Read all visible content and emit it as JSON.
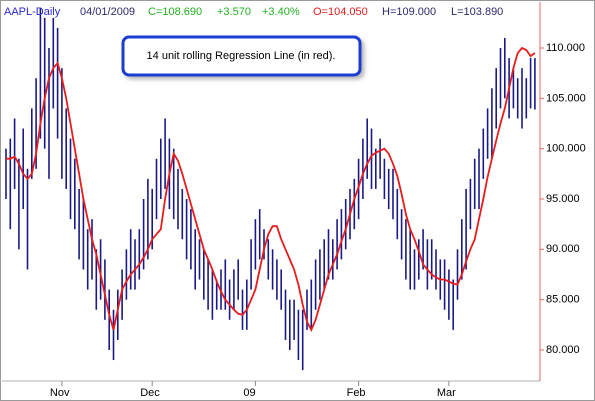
{
  "chart_data": {
    "type": "ohlc",
    "header": {
      "symbol": "AAPL-Daily",
      "date": "04/01/2009",
      "close": "C=108.690",
      "change": "+3.570",
      "change_pct": "+3.40%",
      "open": "O=104.050",
      "high": "H=109.000",
      "low": "L=103.890"
    },
    "annotation": "14 unit rolling Regression Line (in red).",
    "categories": [
      null,
      null,
      null,
      null,
      null,
      null,
      null,
      null,
      null,
      null,
      null,
      null,
      null,
      "Nov",
      null,
      null,
      null,
      null,
      null,
      null,
      null,
      null,
      null,
      null,
      null,
      null,
      null,
      null,
      null,
      null,
      null,
      null,
      null,
      null,
      "Dec",
      null,
      null,
      null,
      null,
      null,
      null,
      null,
      null,
      null,
      null,
      null,
      null,
      null,
      null,
      null,
      null,
      null,
      null,
      null,
      null,
      null,
      null,
      null,
      "09",
      null,
      null,
      null,
      null,
      null,
      null,
      null,
      null,
      null,
      null,
      null,
      null,
      null,
      null,
      null,
      null,
      null,
      null,
      null,
      null,
      null,
      null,
      null,
      "Feb",
      null,
      null,
      null,
      null,
      null,
      null,
      null,
      null,
      null,
      null,
      null,
      null,
      null,
      null,
      null,
      null,
      null,
      null,
      null,
      null,
      "Mar",
      null,
      null,
      null,
      null,
      null,
      null,
      null,
      null,
      null,
      null,
      null,
      null,
      null,
      null,
      null,
      null,
      null,
      null,
      null,
      null
    ],
    "high": [
      100,
      101,
      103,
      99,
      102,
      98,
      104,
      107,
      114,
      113,
      110,
      113,
      112,
      108,
      104,
      101,
      99,
      96,
      95,
      92,
      93,
      90,
      91,
      89,
      86,
      84,
      86,
      88,
      90,
      92,
      91,
      92,
      95,
      97,
      96,
      99,
      101,
      103,
      101,
      100,
      98,
      96,
      95,
      94,
      92,
      91,
      90,
      89,
      88,
      87,
      88,
      89,
      87,
      88,
      89,
      86,
      87,
      91,
      93,
      94,
      92,
      91,
      90,
      89,
      88,
      86,
      85,
      85,
      84,
      84,
      86,
      87,
      89,
      90,
      91,
      92,
      91,
      93,
      94,
      95,
      96,
      97,
      99,
      101,
      103,
      102,
      100,
      101,
      99,
      98,
      98,
      96,
      94,
      93,
      92,
      90,
      91,
      92,
      91,
      91,
      90,
      89,
      89,
      88,
      87,
      90,
      93,
      96,
      97,
      99,
      100,
      102,
      104,
      106,
      108,
      110,
      111,
      109,
      108,
      107,
      108,
      107,
      109,
      109
    ],
    "low": [
      95,
      92,
      96,
      90,
      94,
      88,
      97,
      98,
      101,
      100,
      97,
      104,
      101,
      97,
      96,
      93,
      92,
      89,
      88,
      86,
      87,
      84,
      85,
      83,
      80,
      79,
      81,
      83,
      85,
      86,
      86,
      87,
      88,
      89,
      90,
      93,
      95,
      96,
      94,
      93,
      92,
      91,
      89,
      88,
      86,
      87,
      85,
      84,
      83,
      84,
      84,
      84,
      83,
      84,
      85,
      82,
      82,
      86,
      88,
      89,
      89,
      87,
      86,
      85,
      84,
      81,
      80,
      81,
      79,
      78,
      82,
      82,
      84,
      85,
      86,
      87,
      87,
      88,
      89,
      90,
      91,
      92,
      93,
      95,
      97,
      96,
      96,
      97,
      95,
      94,
      93,
      91,
      89,
      87,
      86,
      86,
      87,
      88,
      86,
      87,
      86,
      85,
      84,
      83,
      82,
      85,
      87,
      88,
      92,
      94,
      94,
      97,
      99,
      99,
      102,
      104,
      105,
      103,
      104,
      103,
      102,
      103,
      104,
      103.89
    ],
    "bar_color": "#1a1a86",
    "regression": {
      "color": "#e81c1c",
      "values": [
        99,
        99,
        99.2,
        98.5,
        97.5,
        97,
        97.5,
        99.5,
        102.5,
        105,
        107,
        108,
        108.5,
        107,
        105,
        102.5,
        100,
        97.5,
        95,
        93,
        91,
        89.5,
        87.5,
        85.5,
        83.5,
        82,
        84,
        86,
        86.8,
        87.5,
        88,
        88.5,
        89.2,
        90,
        91,
        91.5,
        92,
        95,
        97.5,
        99.5,
        98.8,
        97.5,
        96,
        94.5,
        93,
        91.5,
        90,
        89,
        88,
        86.8,
        85.8,
        85,
        84.5,
        84,
        83.6,
        83.5,
        84,
        85,
        86,
        88,
        90,
        91.5,
        92.3,
        92.3,
        91,
        90,
        89,
        88,
        86.5,
        84.5,
        82.8,
        82,
        83,
        84.5,
        86,
        87.5,
        88.5,
        89.5,
        90.8,
        92,
        93.5,
        95,
        96.2,
        97.5,
        98.5,
        99.3,
        99.6,
        99.8,
        100,
        99.5,
        98.5,
        97.3,
        95.5,
        93.5,
        92,
        91,
        89.8,
        88.5,
        88,
        87.5,
        87.2,
        87,
        87,
        86.8,
        86.6,
        86.5,
        87.5,
        88.8,
        90,
        91,
        93,
        95,
        97.2,
        99,
        100.8,
        102.5,
        104,
        106,
        108,
        109.5,
        110,
        109.8,
        109.2,
        109.5
      ]
    },
    "ylim": [
      76.92,
      114.77
    ],
    "yticks": [
      {
        "value": 80,
        "label": "80.000"
      },
      {
        "value": 85,
        "label": "85.000"
      },
      {
        "value": 90,
        "label": "90.000"
      },
      {
        "value": 95,
        "label": "95.000"
      },
      {
        "value": 100,
        "label": "100.000"
      },
      {
        "value": 105,
        "label": "105.000"
      },
      {
        "value": 110,
        "label": "110.000"
      }
    ]
  }
}
